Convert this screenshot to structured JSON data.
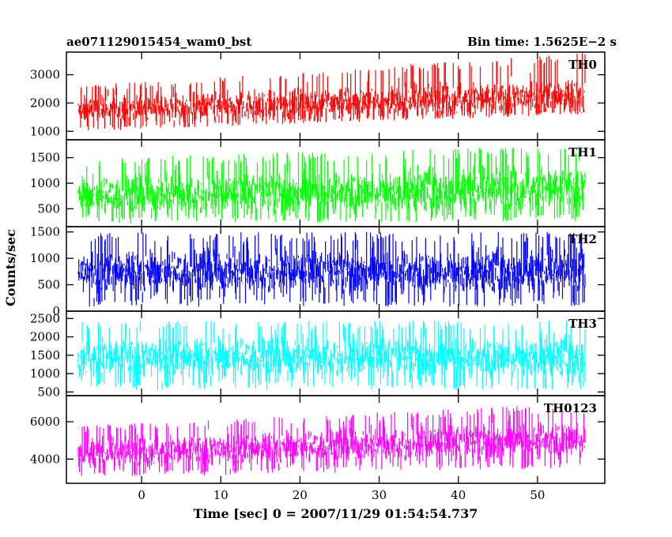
{
  "header": {
    "title": "ae071129015454_wam0_bst",
    "bin_time": "Bin time: 1.5625E−2 s"
  },
  "chart_data": {
    "type": "line",
    "xlabel": "Time [sec] 0 = 2007/11/29 01:54:54.737",
    "ylabel": "Counts/sec",
    "xlim": [
      -9.5,
      58.5
    ],
    "x_data_range": [
      -8,
      56
    ],
    "xticks": [
      0,
      10,
      20,
      30,
      40,
      50
    ],
    "grid": false,
    "panels": [
      {
        "name": "TH0",
        "color": "#ff0000",
        "ylim": [
          700,
          3800
        ],
        "yticks": [
          1000,
          2000,
          3000
        ],
        "trend": {
          "x": [
            -8,
            56
          ],
          "y": [
            1750,
            2250
          ]
        },
        "envelope_low": {
          "x": [
            -8,
            56
          ],
          "y": [
            1000,
            1600
          ]
        },
        "envelope_high": {
          "x": [
            -8,
            56
          ],
          "y": [
            2600,
            3800
          ]
        }
      },
      {
        "name": "TH1",
        "color": "#00ff00",
        "ylim": [
          150,
          1850
        ],
        "yticks": [
          500,
          1000,
          1500
        ],
        "trend": {
          "x": [
            -8,
            56
          ],
          "y": [
            750,
            900
          ]
        },
        "envelope_low": {
          "x": [
            -8,
            56
          ],
          "y": [
            200,
            250
          ]
        },
        "envelope_high": {
          "x": [
            -8,
            56
          ],
          "y": [
            1500,
            1750
          ]
        }
      },
      {
        "name": "TH2",
        "color": "#0000ff",
        "ylim": [
          0,
          1600
        ],
        "yticks": [
          0,
          500,
          1000,
          1500
        ],
        "trend": {
          "x": [
            -8,
            56
          ],
          "y": [
            750,
            750
          ]
        },
        "envelope_low": {
          "x": [
            -8,
            56
          ],
          "y": [
            80,
            80
          ]
        },
        "envelope_high": {
          "x": [
            -8,
            56
          ],
          "y": [
            1500,
            1500
          ]
        }
      },
      {
        "name": "TH3",
        "color": "#00ffff",
        "ylim": [
          400,
          2700
        ],
        "yticks": [
          500,
          1000,
          1500,
          2000,
          2500
        ],
        "trend": {
          "x": [
            -8,
            56
          ],
          "y": [
            1450,
            1450
          ]
        },
        "envelope_low": {
          "x": [
            -8,
            56
          ],
          "y": [
            550,
            550
          ]
        },
        "envelope_high": {
          "x": [
            -8,
            56
          ],
          "y": [
            2450,
            2450
          ]
        }
      },
      {
        "name": "TH0123",
        "color": "#ff00ff",
        "ylim": [
          2700,
          7400
        ],
        "yticks": [
          4000,
          6000
        ],
        "trend": {
          "x": [
            -8,
            56
          ],
          "y": [
            4300,
            5100
          ]
        },
        "envelope_low": {
          "x": [
            -8,
            56
          ],
          "y": [
            3000,
            3500
          ]
        },
        "envelope_high": {
          "x": [
            -8,
            56
          ],
          "y": [
            5800,
            7000
          ]
        }
      }
    ]
  }
}
